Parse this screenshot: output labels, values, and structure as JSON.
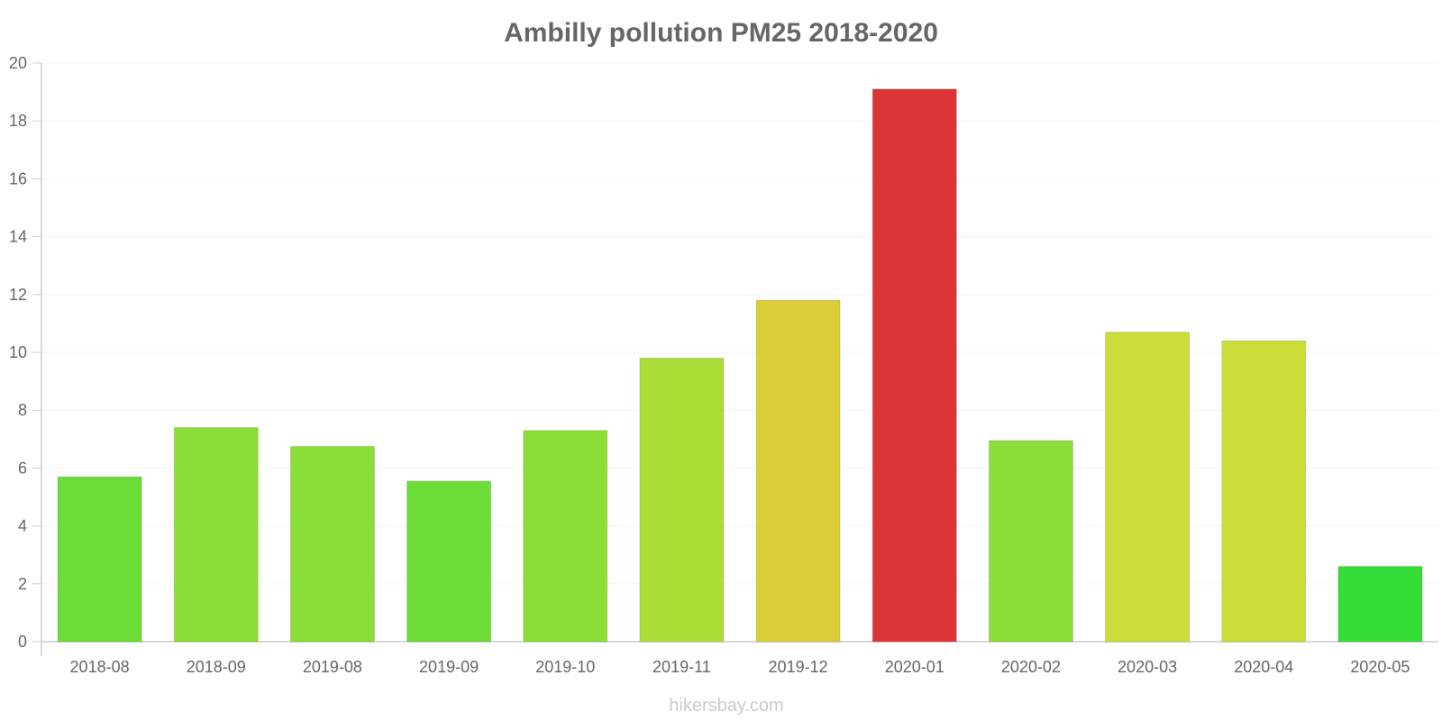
{
  "chart_data": {
    "type": "bar",
    "title": "Ambilly pollution PM25 2018-2020",
    "xlabel": "",
    "ylabel": "",
    "ylim": [
      0,
      20
    ],
    "y_ticks": [
      0,
      2,
      4,
      6,
      8,
      10,
      12,
      14,
      16,
      18,
      20
    ],
    "grid": true,
    "legend": "none",
    "categories": [
      "2018-08",
      "2018-09",
      "2019-08",
      "2019-09",
      "2019-10",
      "2019-11",
      "2019-12",
      "2020-01",
      "2020-02",
      "2020-03",
      "2020-04",
      "2020-05"
    ],
    "values": [
      5.7,
      7.4,
      6.75,
      5.55,
      7.3,
      9.8,
      11.8,
      19.1,
      6.95,
      10.7,
      10.4,
      2.6
    ],
    "colors": [
      "#6cdd37",
      "#8bdd37",
      "#8bdd37",
      "#6cdd37",
      "#8bdd37",
      "#abdd37",
      "#dacd37",
      "#dc3537",
      "#8bdd37",
      "#cddd37",
      "#cddd37",
      "#34dd37"
    ]
  },
  "watermark": "hikersbay.com"
}
